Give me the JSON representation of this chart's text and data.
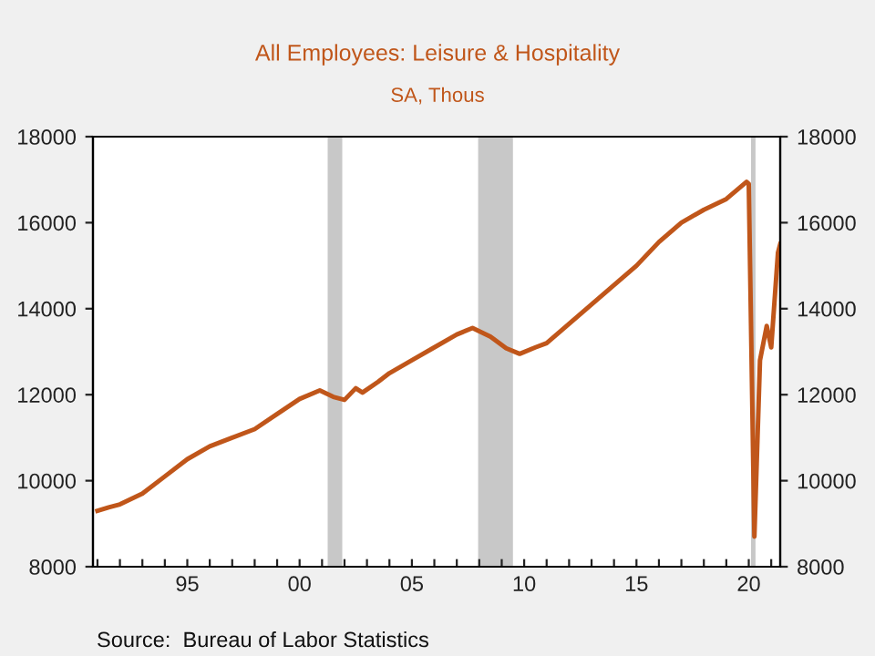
{
  "chart_data": {
    "type": "line",
    "title": "All Employees: Leisure & Hospitality",
    "subtitle": "SA, Thous",
    "annotations": [
      "Source:  Bureau of Labor Statistics"
    ],
    "x": [
      1991.0,
      1991.5,
      1992.0,
      1993.0,
      1994.0,
      1995.0,
      1996.0,
      1997.0,
      1998.0,
      1999.0,
      2000.0,
      2000.9,
      2001.5,
      2002.0,
      2002.5,
      2002.8,
      2003.5,
      2004.0,
      2005.0,
      2006.0,
      2007.0,
      2007.7,
      2008.5,
      2009.2,
      2009.8,
      2010.5,
      2011.0,
      2012.0,
      2013.0,
      2014.0,
      2015.0,
      2016.0,
      2017.0,
      2018.0,
      2019.0,
      2019.9,
      2020.0,
      2020.25,
      2020.5,
      2020.8,
      2021.0,
      2021.3,
      2021.4
    ],
    "series": [
      {
        "color": "#c0561a",
        "values": [
          9300,
          9380,
          9450,
          9700,
          10100,
          10500,
          10800,
          11000,
          11200,
          11550,
          11900,
          12100,
          11950,
          11880,
          12150,
          12050,
          12300,
          12500,
          12800,
          13100,
          13400,
          13550,
          13350,
          13080,
          12950,
          13100,
          13200,
          13650,
          14100,
          14550,
          15000,
          15550,
          16000,
          16300,
          16550,
          16950,
          16900,
          8700,
          12800,
          13600,
          13100,
          15300,
          15500
        ]
      }
    ],
    "xlim": [
      1990.8,
      2021.4
    ],
    "xticks": [
      {
        "value": 1991,
        "label": null
      },
      {
        "value": 1992,
        "label": null
      },
      {
        "value": 1993,
        "label": null
      },
      {
        "value": 1994,
        "label": null
      },
      {
        "value": 1995,
        "label": "95"
      },
      {
        "value": 1996,
        "label": null
      },
      {
        "value": 1997,
        "label": null
      },
      {
        "value": 1998,
        "label": null
      },
      {
        "value": 1999,
        "label": null
      },
      {
        "value": 2000,
        "label": "00"
      },
      {
        "value": 2001,
        "label": null
      },
      {
        "value": 2002,
        "label": null
      },
      {
        "value": 2003,
        "label": null
      },
      {
        "value": 2004,
        "label": null
      },
      {
        "value": 2005,
        "label": "05"
      },
      {
        "value": 2006,
        "label": null
      },
      {
        "value": 2007,
        "label": null
      },
      {
        "value": 2008,
        "label": null
      },
      {
        "value": 2009,
        "label": null
      },
      {
        "value": 2010,
        "label": "10"
      },
      {
        "value": 2011,
        "label": null
      },
      {
        "value": 2012,
        "label": null
      },
      {
        "value": 2013,
        "label": null
      },
      {
        "value": 2014,
        "label": null
      },
      {
        "value": 2015,
        "label": "15"
      },
      {
        "value": 2016,
        "label": null
      },
      {
        "value": 2017,
        "label": null
      },
      {
        "value": 2018,
        "label": null
      },
      {
        "value": 2019,
        "label": null
      },
      {
        "value": 2020,
        "label": "20"
      },
      {
        "value": 2021,
        "label": null
      }
    ],
    "ylim": [
      8000,
      18000
    ],
    "yticks": [
      8000,
      10000,
      12000,
      14000,
      16000,
      18000
    ],
    "y2lim": [
      8000,
      18000
    ],
    "y2ticks": [
      8000,
      10000,
      12000,
      14000,
      16000,
      18000
    ],
    "bands": [
      {
        "axis": "x",
        "from": 2001.25,
        "to": 2001.9,
        "color": "#c8c8c8"
      },
      {
        "axis": "x",
        "from": 2007.95,
        "to": 2009.5,
        "color": "#c8c8c8"
      },
      {
        "axis": "x",
        "from": 2020.1,
        "to": 2020.3,
        "color": "#c8c8c8"
      }
    ],
    "grid": false,
    "legend": false,
    "line_style": "solid",
    "marker": "none"
  }
}
